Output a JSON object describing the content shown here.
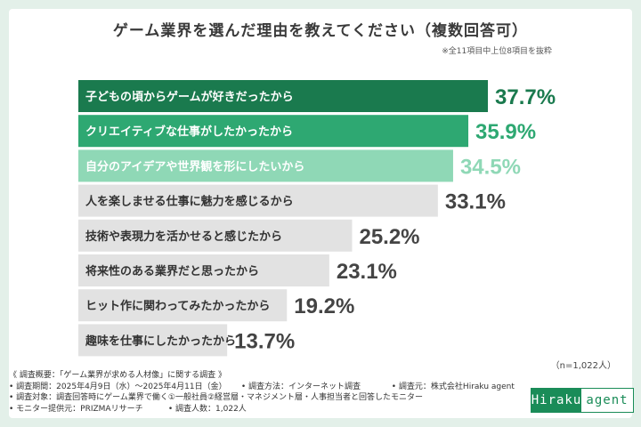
{
  "title": "ゲーム業界を選んだ理由を教えてください（複数回答可）",
  "subnote": "※全11項目中上位8項目を抜粋",
  "sample_note": "（n=1,022人）",
  "chart_data": {
    "type": "bar",
    "orientation": "horizontal",
    "categories": [
      "子どもの頃からゲームが好きだったから",
      "クリエイティブな仕事がしたかったから",
      "自分のアイデアや世界観を形にしたいから",
      "人を楽しませる仕事に魅力を感じるから",
      "技術や表現力を活かせると感じたから",
      "将来性のある業界だと思ったから",
      "ヒット作に関わってみたかったから",
      "趣味を仕事にしたかったから"
    ],
    "values": [
      37.7,
      35.9,
      34.5,
      33.1,
      25.2,
      23.1,
      19.2,
      13.7
    ],
    "labels": [
      "37.7%",
      "35.9%",
      "34.5%",
      "33.1%",
      "25.2%",
      "23.1%",
      "19.2%",
      "13.7%"
    ],
    "colors": [
      "#1a7a4e",
      "#2ea872",
      "#8fd8b6",
      "#e2e2e2",
      "#e2e2e2",
      "#e2e2e2",
      "#e2e2e2",
      "#e2e2e2"
    ],
    "label_colors": [
      "#1a7a4e",
      "#2ea872",
      "#8fd8b6",
      "#444444",
      "#444444",
      "#444444",
      "#444444",
      "#444444"
    ],
    "text_colors": [
      "#ffffff",
      "#ffffff",
      "#ffffff",
      "#333333",
      "#333333",
      "#333333",
      "#333333",
      "#333333"
    ],
    "xlim": [
      0,
      37.7
    ],
    "unit": "%"
  },
  "footer": {
    "heading": "《 調査概要：「ゲーム業界が求める人材像」に関する調査 》",
    "period": "• 調査期間：2025年4月9日（水）〜2025年4月11日（金）",
    "method": "• 調査方法：インターネット調査",
    "source": "• 調査元：株式会社Hiraku agent",
    "target": "• 調査対象：調査回答時にゲーム業界で働く①一般社員②経営層・マネジメント層・人事担当者と回答したモニター",
    "monitor": "• モニター提供元：PRIZMAリサーチ",
    "count": "• 調査人数：1,022人"
  },
  "logo": {
    "left": "Hiraku",
    "right": "agent"
  }
}
